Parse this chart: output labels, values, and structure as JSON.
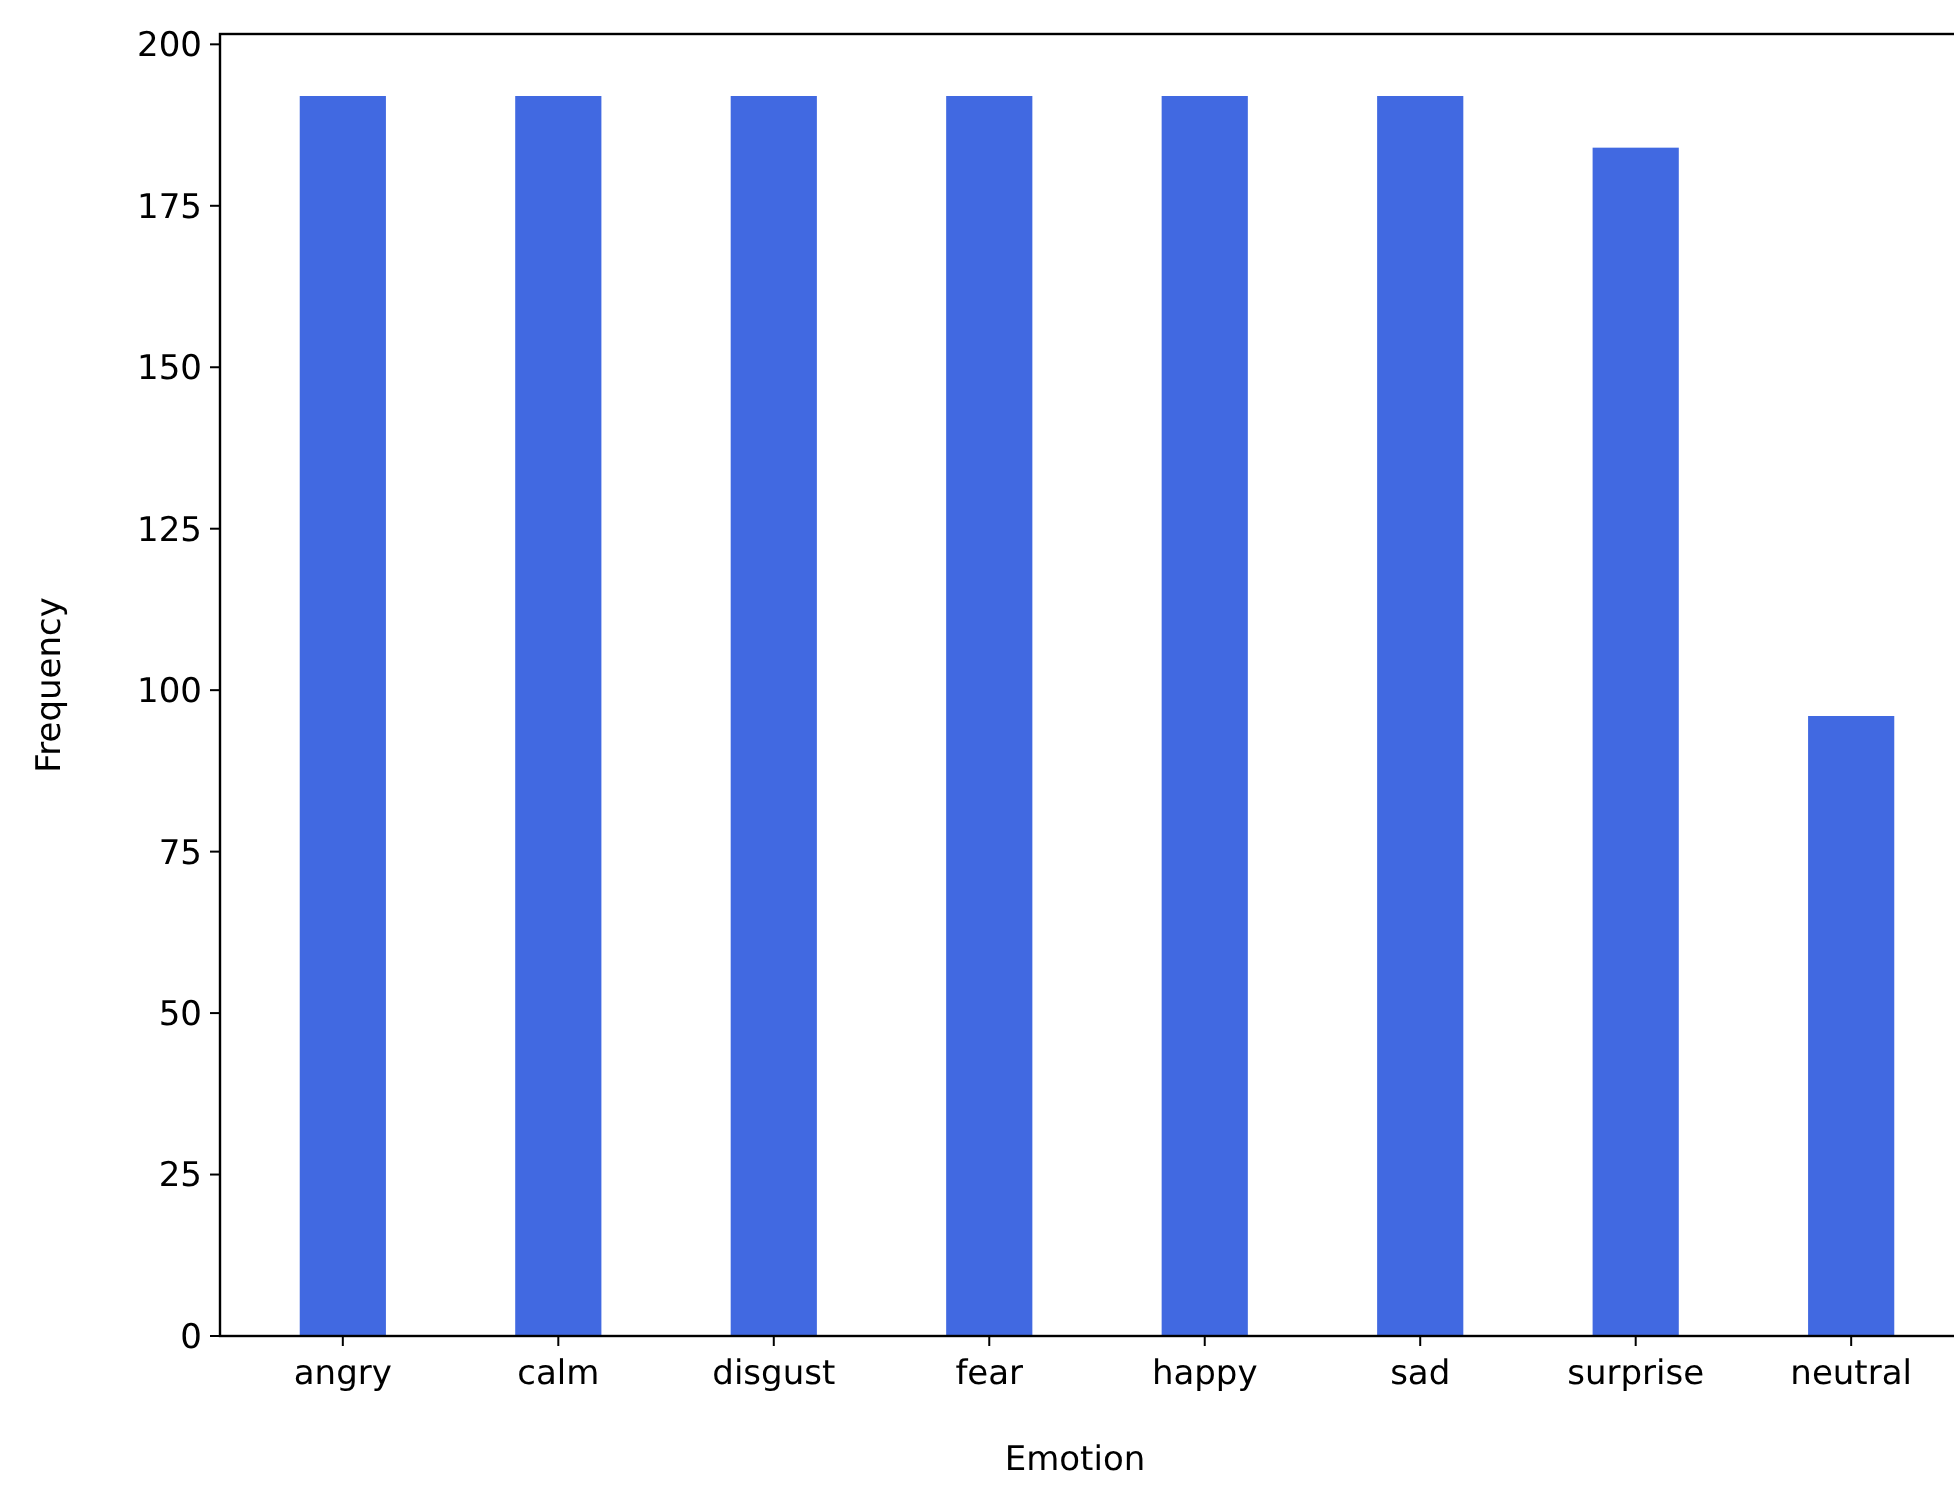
{
  "chart_data": {
    "type": "bar",
    "xlabel": "Emotion",
    "ylabel": "Frequency",
    "categories": [
      "angry",
      "calm",
      "disgust",
      "fear",
      "happy",
      "sad",
      "surprise",
      "neutral"
    ],
    "values": [
      192,
      192,
      192,
      192,
      192,
      192,
      184,
      96
    ],
    "color": "#4169e1",
    "ylim": [
      0,
      201.6
    ],
    "yticks": [
      0,
      25,
      50,
      75,
      100,
      125,
      150,
      175,
      200
    ],
    "grid": false
  }
}
